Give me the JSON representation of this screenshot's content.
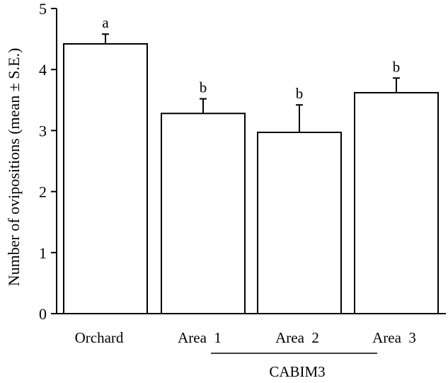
{
  "chart_data": {
    "type": "bar",
    "ylabel": "Number of ovipositions (mean ± S.E.)",
    "xlabel": "",
    "ylim": [
      0,
      5
    ],
    "yticks": [
      0,
      1,
      2,
      3,
      4,
      5
    ],
    "categories": [
      "Orchard",
      "Area  1",
      "Area  2",
      "Area  3"
    ],
    "values": [
      4.42,
      3.28,
      2.97,
      3.62
    ],
    "errors": [
      0.16,
      0.24,
      0.45,
      0.24
    ],
    "significance_letters": [
      "a",
      "b",
      "b",
      "b"
    ],
    "group": {
      "label": "CABIM3",
      "spans_categories": [
        1,
        3
      ]
    },
    "grid": false,
    "legend": "none",
    "colors": {
      "bar_fill": "#ffffff",
      "stroke": "#000000"
    }
  }
}
